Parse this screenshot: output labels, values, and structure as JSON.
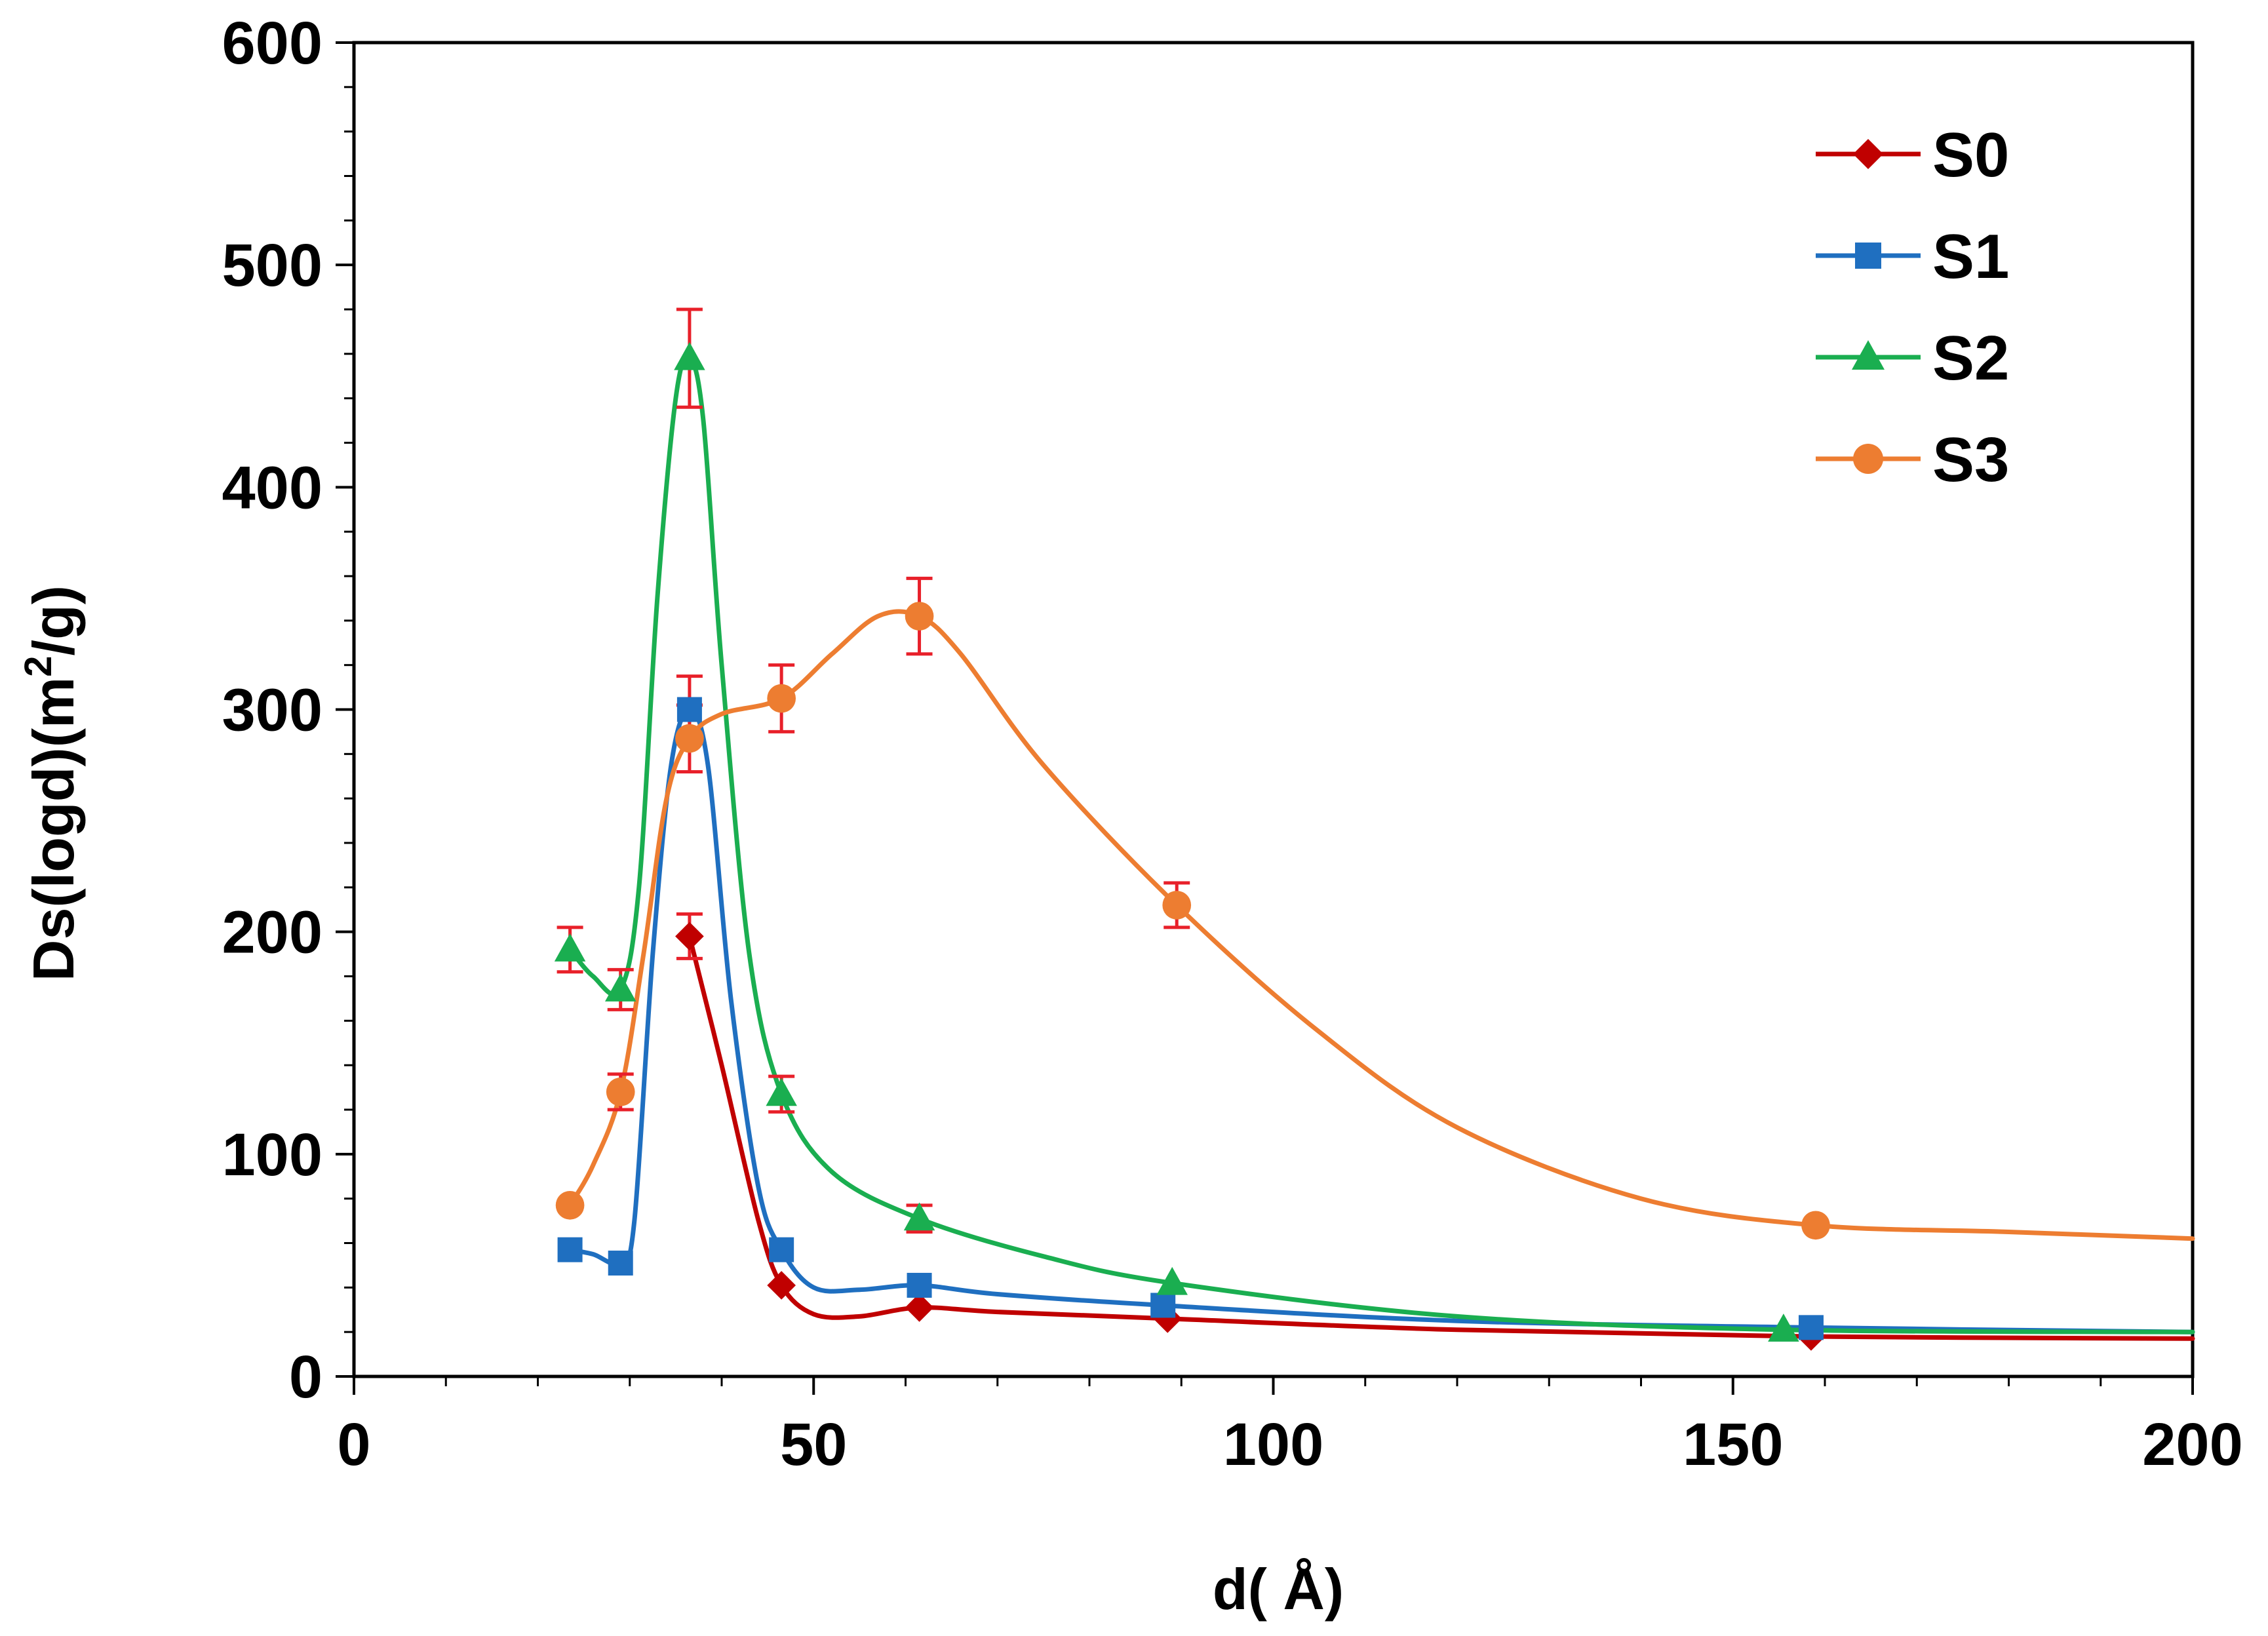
{
  "chart_data": {
    "type": "line",
    "title": "",
    "xlabel": "d( Å)",
    "ylabel_main": "Ds(logd)(m",
    "ylabel_sup": "2",
    "ylabel_end": "/g)",
    "xlim": [
      0,
      200
    ],
    "ylim": [
      0,
      600
    ],
    "x_major_ticks": [
      0,
      50,
      100,
      150,
      200
    ],
    "x_tick_labels": [
      "0",
      "50",
      "100",
      "150",
      "200"
    ],
    "x_minor_step": 10,
    "y_major_ticks": [
      0,
      100,
      200,
      300,
      400,
      500,
      600
    ],
    "y_tick_labels": [
      "0",
      "100",
      "200",
      "300",
      "400",
      "500",
      "600"
    ],
    "y_minor_step": 20,
    "grid": false,
    "legend_position": "top-right",
    "error_bar_color": "#e8202a",
    "series": [
      {
        "name": "S0",
        "color": "#c00000",
        "marker": "diamond",
        "points": [
          [
            36.5,
            198
          ],
          [
            46.5,
            41
          ],
          [
            61.5,
            31
          ],
          [
            88.5,
            26
          ],
          [
            158.5,
            18
          ]
        ],
        "errors": [
          10,
          0,
          0,
          0,
          0
        ],
        "curve": [
          [
            36.5,
            198
          ],
          [
            40,
            140
          ],
          [
            44,
            70
          ],
          [
            46.5,
            41
          ],
          [
            50,
            28
          ],
          [
            55,
            27
          ],
          [
            61.5,
            31
          ],
          [
            70,
            29
          ],
          [
            88.5,
            26
          ],
          [
            120,
            21
          ],
          [
            158.5,
            18
          ],
          [
            200,
            17
          ]
        ]
      },
      {
        "name": "S1",
        "color": "#1f6fc0",
        "marker": "square",
        "points": [
          [
            23.5,
            57
          ],
          [
            29,
            51
          ],
          [
            36.5,
            300
          ],
          [
            46.5,
            57
          ],
          [
            61.5,
            41
          ],
          [
            88,
            32
          ],
          [
            158.5,
            22
          ]
        ],
        "errors": [
          0,
          0,
          15,
          0,
          0,
          0,
          0
        ],
        "curve": [
          [
            23.5,
            57
          ],
          [
            26,
            55
          ],
          [
            29,
            51
          ],
          [
            30.5,
            70
          ],
          [
            32.5,
            190
          ],
          [
            34.5,
            275
          ],
          [
            36.5,
            300
          ],
          [
            38.5,
            275
          ],
          [
            41,
            170
          ],
          [
            44,
            85
          ],
          [
            46.5,
            57
          ],
          [
            50,
            40
          ],
          [
            55,
            39
          ],
          [
            61.5,
            41
          ],
          [
            70,
            37
          ],
          [
            88,
            32
          ],
          [
            120,
            25
          ],
          [
            158.5,
            22
          ],
          [
            200,
            20
          ]
        ]
      },
      {
        "name": "S2",
        "color": "#1aae50",
        "marker": "triangle",
        "points": [
          [
            23.5,
            192
          ],
          [
            29,
            174
          ],
          [
            36.5,
            458
          ],
          [
            46.5,
            127
          ],
          [
            61.5,
            71
          ],
          [
            89,
            42
          ],
          [
            155.5,
            21
          ]
        ],
        "errors": [
          10,
          9,
          22,
          8,
          6,
          0,
          0
        ],
        "curve": [
          [
            23.5,
            192
          ],
          [
            26,
            180
          ],
          [
            29,
            174
          ],
          [
            31,
            220
          ],
          [
            33,
            350
          ],
          [
            35,
            440
          ],
          [
            36.5,
            458
          ],
          [
            38,
            430
          ],
          [
            40,
            320
          ],
          [
            43,
            190
          ],
          [
            46.5,
            127
          ],
          [
            52,
            92
          ],
          [
            61.5,
            71
          ],
          [
            75,
            54
          ],
          [
            89,
            42
          ],
          [
            120,
            27
          ],
          [
            155.5,
            21
          ],
          [
            200,
            20
          ]
        ]
      },
      {
        "name": "S3",
        "color": "#ed7d31",
        "marker": "circle",
        "points": [
          [
            23.5,
            77
          ],
          [
            29,
            128
          ],
          [
            36.5,
            287
          ],
          [
            46.5,
            305
          ],
          [
            61.5,
            342
          ],
          [
            89.5,
            212
          ],
          [
            159,
            68
          ]
        ],
        "errors": [
          0,
          8,
          15,
          15,
          17,
          10,
          0
        ],
        "curve": [
          [
            23.5,
            77
          ],
          [
            26,
            95
          ],
          [
            29,
            128
          ],
          [
            31.5,
            190
          ],
          [
            34,
            260
          ],
          [
            36.5,
            287
          ],
          [
            40,
            298
          ],
          [
            46.5,
            305
          ],
          [
            52,
            325
          ],
          [
            57,
            342
          ],
          [
            61.5,
            342
          ],
          [
            66,
            325
          ],
          [
            75,
            275
          ],
          [
            89.5,
            212
          ],
          [
            105,
            155
          ],
          [
            120,
            112
          ],
          [
            140,
            80
          ],
          [
            159,
            68
          ],
          [
            180,
            65
          ],
          [
            200,
            62
          ]
        ]
      }
    ]
  }
}
